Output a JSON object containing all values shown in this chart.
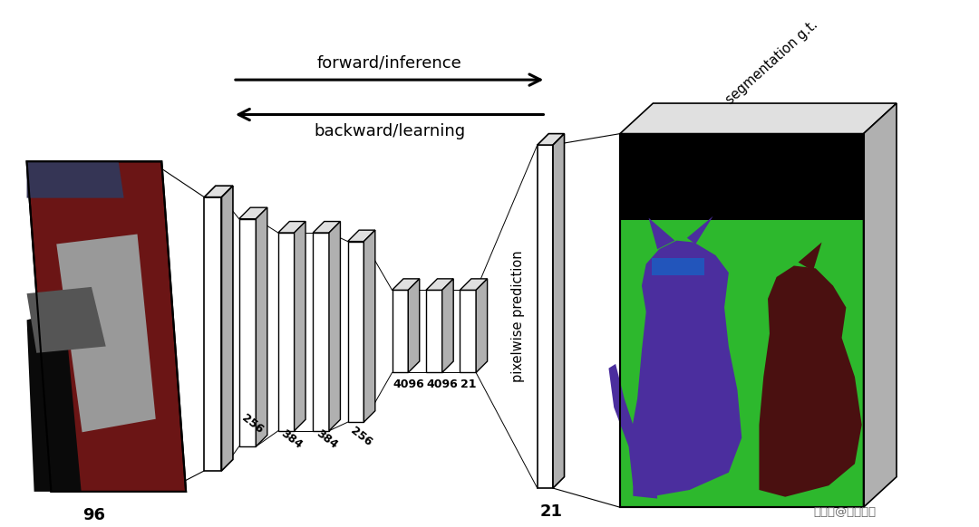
{
  "background_color": "#ffffff",
  "figure_size": [
    10.8,
    5.82
  ],
  "dpi": 100,
  "forward_arrow_text": "forward/inference",
  "backward_arrow_text": "backward/learning",
  "pixelwise_text": "pixelwise prediction",
  "segmentation_text": "segmentation g.t.",
  "label_96": "96",
  "label_21_bottom": "21",
  "layer_labels": [
    "256",
    "384",
    "384",
    "256",
    "4096",
    "4096",
    "21"
  ],
  "watermark": "搜狐号@梦莹技术",
  "colors": {
    "white": "#ffffff",
    "black": "#000000",
    "light_gray": "#e0e0e0",
    "gray": "#b0b0b0",
    "green": "#2db82d",
    "purple": "#4b2e9e",
    "dark_brown": "#4a1010",
    "blue_rect": "#2255bb",
    "photo_bg": "#7a2020"
  }
}
